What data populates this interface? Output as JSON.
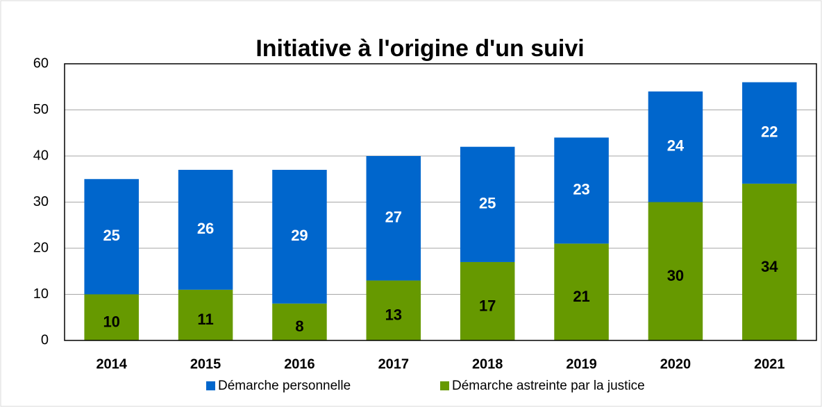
{
  "chart_data": {
    "type": "bar",
    "stacked": true,
    "title": "Initiative à l'origine d'un suivi",
    "categories": [
      "2014",
      "2015",
      "2016",
      "2017",
      "2018",
      "2019",
      "2020",
      "2021"
    ],
    "series": [
      {
        "name": "Démarche personnelle",
        "color": "#0066cc",
        "values": [
          25,
          26,
          29,
          27,
          25,
          23,
          24,
          22
        ]
      },
      {
        "name": "Démarche astreinte par la justice",
        "color": "#669900",
        "values": [
          10,
          11,
          8,
          13,
          17,
          21,
          30,
          34
        ]
      }
    ],
    "ylim": [
      0,
      60
    ],
    "yticks": [
      0,
      10,
      20,
      30,
      40,
      50,
      60
    ],
    "grid": true,
    "legend": "bottom"
  }
}
